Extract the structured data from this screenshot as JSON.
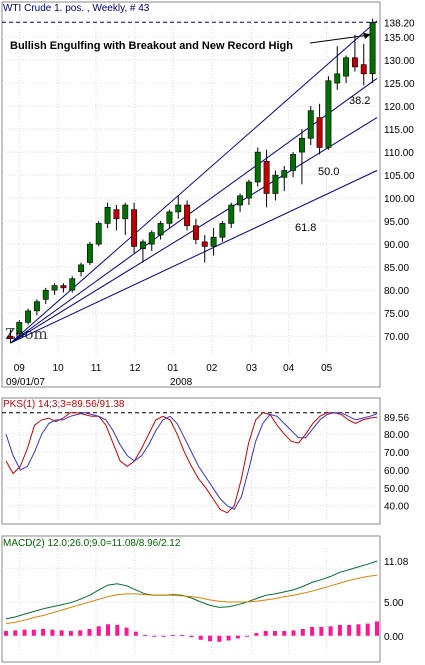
{
  "chart_data": [
    {
      "type": "candlestick",
      "title": "WTI Crude 1. pos. , Weekly, # 43",
      "title_color": "#000080",
      "last_price_label": "138.20",
      "ylim": [
        67,
        140
      ],
      "yticks": [
        "70.00",
        "75.00",
        "80.00",
        "85.00",
        "90.00",
        "95.00",
        "100.00",
        "105.00",
        "110.00",
        "115.00",
        "120.00",
        "125.00",
        "130.00",
        "135.00",
        "138.20"
      ],
      "ytick_values": [
        70,
        75,
        80,
        85,
        90,
        95,
        100,
        105,
        110,
        115,
        120,
        125,
        130,
        135,
        138.2
      ],
      "x_month_labels": [
        "09",
        "10",
        "11",
        "12",
        "01",
        "02",
        "03",
        "04",
        "05"
      ],
      "x_month_positions": [
        1.5,
        5.9,
        10.2,
        14.6,
        18.9,
        23.3,
        27.8,
        32.0,
        36.3
      ],
      "x_date_start": "09/01/07",
      "x_year_label": "2008",
      "annotations": {
        "headline": "Bullish Engulfing with Breakout and New Record High",
        "fib_382": "38.2",
        "fib_500": "50.0",
        "fib_618": "61.8",
        "watermark": "Zoom"
      },
      "colors": {
        "up": "#007000",
        "down": "#c00000",
        "trendline": "#000090",
        "dashed": "#000090"
      },
      "candles": [
        {
          "o": 70.0,
          "h": 71.5,
          "l": 68.5,
          "c": 69.5
        },
        {
          "o": 70.5,
          "h": 73.5,
          "l": 70.0,
          "c": 73.0
        },
        {
          "o": 73.0,
          "h": 76.0,
          "l": 72.5,
          "c": 75.5
        },
        {
          "o": 75.5,
          "h": 78.0,
          "l": 74.5,
          "c": 77.5
        },
        {
          "o": 78.0,
          "h": 80.5,
          "l": 77.0,
          "c": 80.0
        },
        {
          "o": 80.0,
          "h": 81.5,
          "l": 79.0,
          "c": 81.0
        },
        {
          "o": 81.0,
          "h": 81.5,
          "l": 79.5,
          "c": 80.5
        },
        {
          "o": 80.0,
          "h": 83.0,
          "l": 79.5,
          "c": 82.5
        },
        {
          "o": 84.0,
          "h": 86.0,
          "l": 83.0,
          "c": 85.5
        },
        {
          "o": 86.0,
          "h": 90.5,
          "l": 85.5,
          "c": 90.0
        },
        {
          "o": 90.0,
          "h": 95.0,
          "l": 89.5,
          "c": 94.5
        },
        {
          "o": 94.5,
          "h": 99.0,
          "l": 93.5,
          "c": 98.0
        },
        {
          "o": 97.5,
          "h": 98.5,
          "l": 93.0,
          "c": 95.5
        },
        {
          "o": 95.5,
          "h": 99.0,
          "l": 92.0,
          "c": 98.5
        },
        {
          "o": 97.5,
          "h": 99.0,
          "l": 88.0,
          "c": 89.5
        },
        {
          "o": 89.0,
          "h": 91.0,
          "l": 86.0,
          "c": 90.5
        },
        {
          "o": 90.0,
          "h": 93.0,
          "l": 88.5,
          "c": 92.5
        },
        {
          "o": 92.0,
          "h": 95.0,
          "l": 91.0,
          "c": 94.5
        },
        {
          "o": 94.5,
          "h": 97.5,
          "l": 93.5,
          "c": 97.0
        },
        {
          "o": 97.0,
          "h": 100.5,
          "l": 95.5,
          "c": 98.5
        },
        {
          "o": 98.5,
          "h": 99.5,
          "l": 93.0,
          "c": 94.0
        },
        {
          "o": 94.0,
          "h": 95.5,
          "l": 90.0,
          "c": 91.0
        },
        {
          "o": 90.5,
          "h": 92.0,
          "l": 86.0,
          "c": 89.5
        },
        {
          "o": 89.5,
          "h": 93.5,
          "l": 87.5,
          "c": 91.5
        },
        {
          "o": 91.5,
          "h": 95.0,
          "l": 90.5,
          "c": 94.5
        },
        {
          "o": 94.5,
          "h": 99.0,
          "l": 93.5,
          "c": 98.5
        },
        {
          "o": 98.5,
          "h": 101.0,
          "l": 97.0,
          "c": 100.5
        },
        {
          "o": 100.0,
          "h": 104.0,
          "l": 98.5,
          "c": 103.5
        },
        {
          "o": 103.5,
          "h": 111.0,
          "l": 102.5,
          "c": 110.0
        },
        {
          "o": 108.0,
          "h": 110.5,
          "l": 98.0,
          "c": 101.0
        },
        {
          "o": 101.0,
          "h": 106.0,
          "l": 99.5,
          "c": 105.0
        },
        {
          "o": 104.5,
          "h": 107.0,
          "l": 101.5,
          "c": 106.0
        },
        {
          "o": 106.0,
          "h": 110.0,
          "l": 104.5,
          "c": 109.5
        },
        {
          "o": 110.0,
          "h": 115.0,
          "l": 103.0,
          "c": 113.0
        },
        {
          "o": 113.0,
          "h": 120.0,
          "l": 111.5,
          "c": 119.0
        },
        {
          "o": 117.5,
          "h": 120.5,
          "l": 109.5,
          "c": 111.0
        },
        {
          "o": 111.0,
          "h": 126.5,
          "l": 110.5,
          "c": 125.5
        },
        {
          "o": 125.0,
          "h": 133.0,
          "l": 123.5,
          "c": 127.0
        },
        {
          "o": 126.5,
          "h": 131.0,
          "l": 125.0,
          "c": 130.5
        },
        {
          "o": 130.5,
          "h": 135.5,
          "l": 127.5,
          "c": 128.5
        },
        {
          "o": 129.0,
          "h": 133.5,
          "l": 124.5,
          "c": 127.0
        },
        {
          "o": 127.0,
          "h": 139.0,
          "l": 125.0,
          "c": 138.2
        }
      ]
    },
    {
      "type": "line",
      "title": "PKS(1) 14;3;3=89.56/91.38",
      "title_color": "#cc0000",
      "ylim": [
        32,
        98
      ],
      "yticks": [
        "40.00",
        "50.00",
        "60.00",
        "70.00",
        "80.00"
      ],
      "ytick_values": [
        40,
        50,
        60,
        70,
        80
      ],
      "last_value_label": "89.56",
      "series": [
        {
          "name": "89.56",
          "color": "#cc0000",
          "values": [
            65,
            58,
            62,
            72,
            85,
            88,
            89,
            87,
            89,
            92,
            92,
            91,
            90,
            90,
            85,
            75,
            65,
            62,
            65,
            72,
            80,
            88,
            90,
            88,
            80,
            70,
            62,
            55,
            50,
            44,
            38,
            36,
            40,
            55,
            75,
            88,
            92,
            91,
            85,
            80,
            76,
            75,
            80,
            86,
            90,
            92,
            92,
            91,
            88,
            86,
            88,
            89,
            89.56
          ]
        },
        {
          "name": "91.38",
          "color": "#3333cc",
          "values": [
            80,
            68,
            60,
            62,
            70,
            80,
            86,
            88,
            88,
            90,
            91,
            92,
            91,
            90,
            88,
            82,
            74,
            68,
            65,
            68,
            74,
            82,
            88,
            90,
            86,
            78,
            70,
            62,
            56,
            50,
            44,
            40,
            38,
            45,
            60,
            76,
            86,
            91,
            90,
            86,
            82,
            78,
            78,
            83,
            88,
            91,
            92,
            92,
            90,
            88,
            89,
            90,
            91.38
          ]
        }
      ]
    },
    {
      "type": "line",
      "title": "MACD(2) 12.0;26.0;9.0=11.08/8.96/2.12",
      "title_color": "#006600",
      "ylim": [
        -3,
        13
      ],
      "yticks": [
        "0.00",
        "5.00"
      ],
      "ytick_values": [
        0,
        5
      ],
      "last_value_label": "11.08",
      "series": [
        {
          "name": "11.08",
          "color": "#007030",
          "values": [
            2.5,
            2.8,
            3.2,
            3.6,
            4.0,
            4.3,
            4.6,
            4.9,
            5.4,
            6.0,
            6.8,
            7.5,
            7.7,
            7.4,
            6.8,
            6.2,
            6.0,
            6.0,
            6.1,
            6.0,
            5.6,
            5.0,
            4.5,
            4.2,
            4.3,
            4.6,
            5.0,
            5.5,
            6.0,
            6.2,
            6.5,
            6.8,
            7.3,
            7.9,
            8.3,
            8.8,
            9.4,
            9.8,
            10.2,
            10.6,
            11.08
          ]
        },
        {
          "name": "8.96",
          "color": "#e08000",
          "values": [
            1.8,
            2.0,
            2.3,
            2.7,
            3.0,
            3.4,
            3.8,
            4.2,
            4.6,
            5.0,
            5.4,
            5.8,
            6.1,
            6.2,
            6.2,
            6.1,
            6.0,
            6.0,
            6.0,
            5.9,
            5.8,
            5.6,
            5.3,
            5.1,
            5.0,
            5.0,
            5.0,
            5.1,
            5.3,
            5.5,
            5.8,
            6.0,
            6.3,
            6.6,
            7.0,
            7.4,
            7.8,
            8.2,
            8.5,
            8.8,
            8.96
          ]
        },
        {
          "name": "2.12",
          "color": "#ff1493",
          "type": "bar",
          "values": [
            0.7,
            0.8,
            0.9,
            0.9,
            1.0,
            0.9,
            0.8,
            0.7,
            0.8,
            1.0,
            1.4,
            1.7,
            1.6,
            1.2,
            0.6,
            0.1,
            0.0,
            0.0,
            0.1,
            0.1,
            -0.2,
            -0.6,
            -0.8,
            -0.9,
            -0.7,
            -0.4,
            0.0,
            0.4,
            0.7,
            0.7,
            0.7,
            0.8,
            1.0,
            1.3,
            1.3,
            1.4,
            1.6,
            1.6,
            1.7,
            1.8,
            2.12
          ]
        }
      ]
    }
  ]
}
